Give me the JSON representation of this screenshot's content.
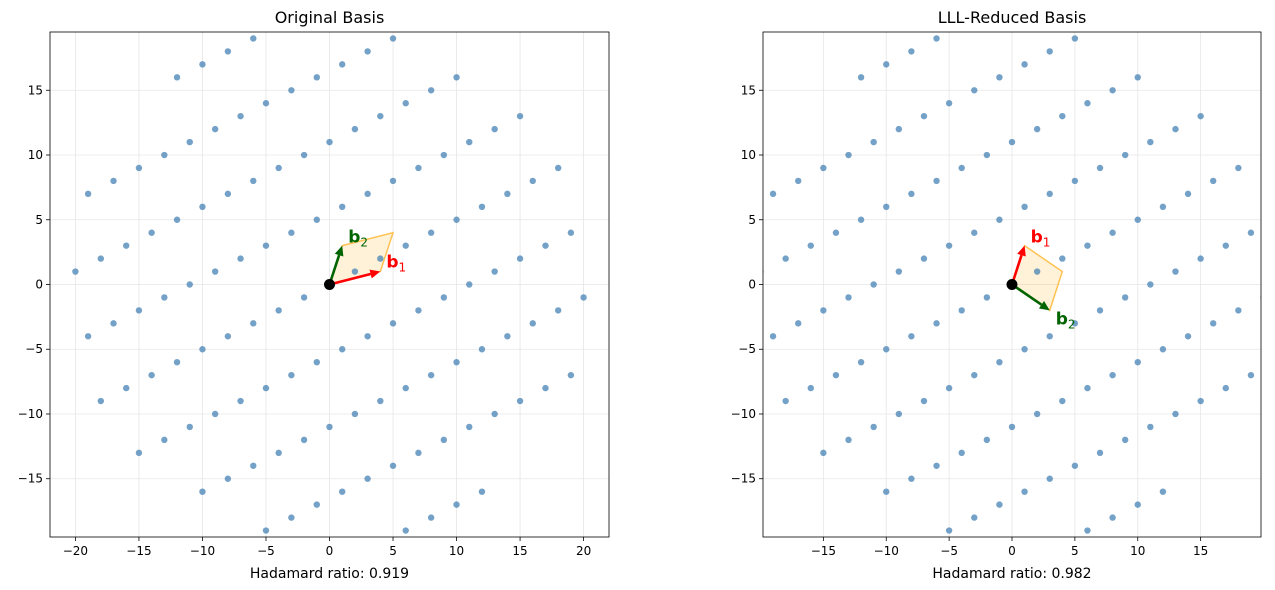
{
  "figure": {
    "panels": [
      {
        "title": "Original Basis",
        "caption": "Hadamard ratio: 0.919"
      },
      {
        "title": "LLL-Reduced Basis",
        "caption": "Hadamard ratio: 0.982"
      }
    ]
  },
  "chart_data": [
    {
      "type": "scatter",
      "title": "Original Basis",
      "xlabel": "Hadamard ratio: 0.919",
      "ylabel": "",
      "xlim": [
        -22,
        22
      ],
      "ylim": [
        -19.5,
        19.5
      ],
      "xticks": [
        -20,
        -15,
        -10,
        -5,
        0,
        5,
        10,
        15,
        20
      ],
      "yticks": [
        -15,
        -10,
        -5,
        0,
        5,
        10,
        15
      ],
      "grid": true,
      "basis": [
        {
          "name": "b1",
          "label_main": "b",
          "label_sub": "1",
          "vector": [
            4,
            1
          ],
          "color": "#ff0000"
        },
        {
          "name": "b2",
          "label_main": "b",
          "label_sub": "2",
          "vector": [
            1,
            3
          ],
          "color": "#006400"
        }
      ],
      "cell_color": "#ffa500",
      "point_color": "#4682b4",
      "origin": [
        0,
        0
      ],
      "lattice_radius": 20.5
    },
    {
      "type": "scatter",
      "title": "LLL-Reduced Basis",
      "xlabel": "Hadamard ratio: 0.982",
      "ylabel": "",
      "xlim": [
        -19.8,
        19.8
      ],
      "ylim": [
        -19.5,
        19.5
      ],
      "xticks": [
        -15,
        -10,
        -5,
        0,
        5,
        10,
        15
      ],
      "yticks": [
        -15,
        -10,
        -5,
        0,
        5,
        10,
        15
      ],
      "grid": true,
      "basis": [
        {
          "name": "b1",
          "label_main": "b",
          "label_sub": "1",
          "vector": [
            1,
            3
          ],
          "color": "#ff0000"
        },
        {
          "name": "b2",
          "label_main": "b",
          "label_sub": "2",
          "vector": [
            3,
            -2
          ],
          "color": "#006400"
        }
      ],
      "cell_color": "#ffa500",
      "point_color": "#4682b4",
      "origin": [
        0,
        0
      ],
      "lattice_radius": 20.5
    }
  ]
}
